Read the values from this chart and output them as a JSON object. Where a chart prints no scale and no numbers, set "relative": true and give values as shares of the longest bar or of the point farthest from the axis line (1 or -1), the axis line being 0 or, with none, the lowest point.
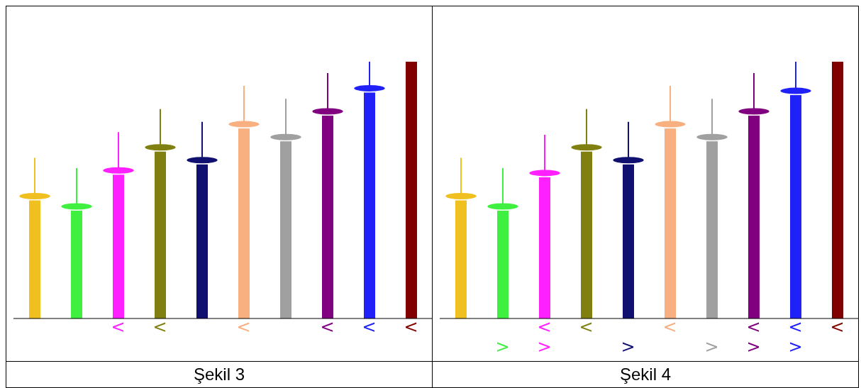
{
  "chart_data": [
    {
      "type": "bar",
      "title": "Şekil 3",
      "relative": true,
      "categories": [
        null,
        null,
        "<",
        "<",
        null,
        "<",
        null,
        "<",
        "<",
        "<"
      ],
      "values": [
        0.46,
        0.42,
        0.56,
        0.65,
        0.6,
        0.74,
        0.69,
        0.79,
        0.88,
        1
      ],
      "colors": [
        "#f0c020",
        "#40f040",
        "#ff20ff",
        "#808010",
        "#101070",
        "#f8b080",
        "#a0a0a0",
        "#800080",
        "#2020f8",
        "#800000"
      ]
    },
    {
      "type": "bar",
      "title": "Şekil 4",
      "relative": true,
      "categories": [
        null,
        "\n>",
        "<\n>",
        "<",
        "\n>",
        "<",
        "\n>",
        "<\n>",
        "<\n>",
        "<"
      ],
      "values": [
        0.46,
        0.42,
        0.55,
        0.65,
        0.6,
        0.74,
        0.69,
        0.79,
        0.87,
        1
      ],
      "colors": [
        "#f0c020",
        "#40f040",
        "#ff20ff",
        "#808010",
        "#101070",
        "#f8b080",
        "#a0a0a0",
        "#800080",
        "#2020f8",
        "#800000"
      ]
    }
  ]
}
